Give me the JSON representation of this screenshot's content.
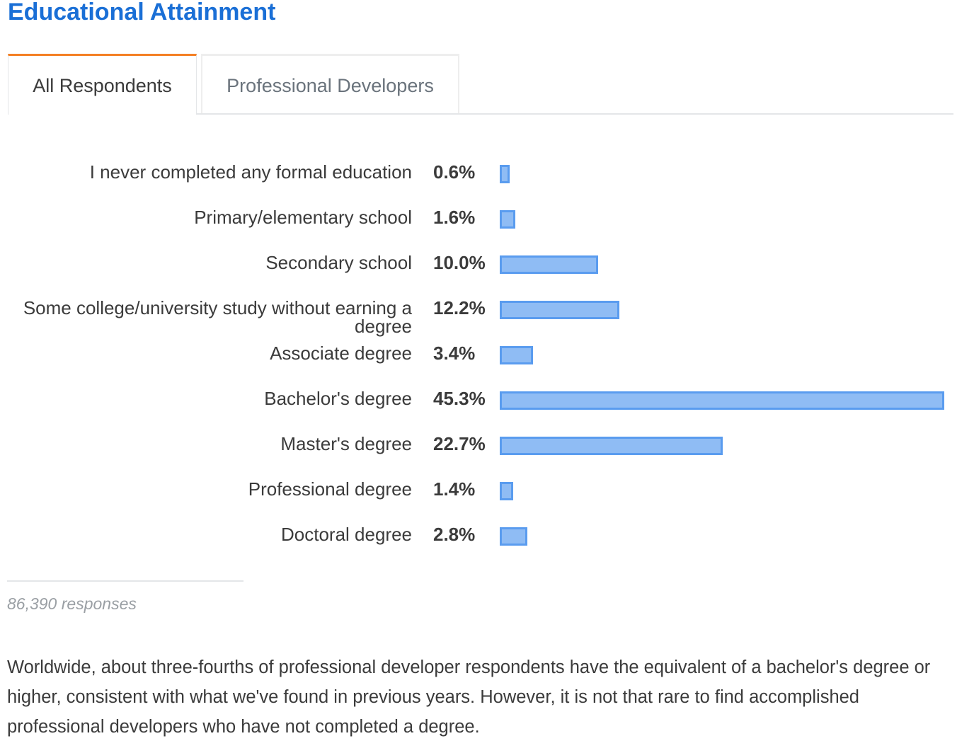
{
  "title": "Educational Attainment",
  "tabs": [
    {
      "label": "All Respondents",
      "active": true
    },
    {
      "label": "Professional Developers",
      "active": false
    }
  ],
  "colors": {
    "title": "#1a6fd6",
    "active_tab_accent": "#f48024",
    "bar_fill": "#8fbcf4",
    "bar_border": "#5a9cef"
  },
  "chart_data": {
    "type": "bar",
    "orientation": "horizontal",
    "categories": [
      "I never completed any formal education",
      "Primary/elementary school",
      "Secondary school",
      "Some college/university study without earning a degree",
      "Associate degree",
      "Bachelor's degree",
      "Master's degree",
      "Professional degree",
      "Doctoral degree"
    ],
    "values": [
      0.6,
      1.6,
      10.0,
      12.2,
      3.4,
      45.3,
      22.7,
      1.4,
      2.8
    ],
    "value_labels": [
      "0.6%",
      "1.6%",
      "10.0%",
      "12.2%",
      "3.4%",
      "45.3%",
      "22.7%",
      "1.4%",
      "2.8%"
    ],
    "unit": "%",
    "grid": false,
    "legend": "none"
  },
  "responses": "86,390 responses",
  "description": "Worldwide, about three-fourths of professional developer respondents have the equivalent of a bachelor's degree or higher, consistent with what we've found in previous years. However, it is not that rare to find accomplished professional developers who have not completed a degree."
}
